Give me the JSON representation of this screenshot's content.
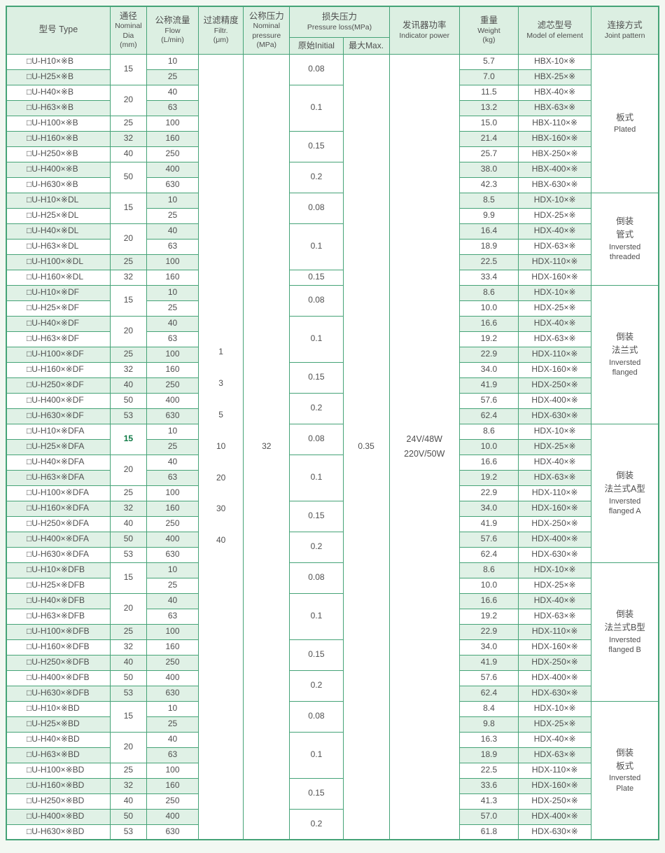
{
  "table": {
    "header": {
      "type_zh": "型号 Type",
      "dia_zh": "通径",
      "dia_en": "Nominal Dia",
      "dia_unit": "(mm)",
      "flow_zh": "公称流量",
      "flow_en": "Flow",
      "flow_unit": "(L/min)",
      "filtr_zh": "过滤精度",
      "filtr_en": "Filtr.",
      "filtr_unit": "(μm)",
      "pressure_zh": "公称压力",
      "pressure_en": "Nominal pressure",
      "pressure_unit": "(MPa)",
      "loss_zh": "损失压力",
      "loss_en": "Pressure loss(MPa)",
      "loss_initial": "原始Initial",
      "loss_max": "最大Max.",
      "power_zh": "发讯器功率",
      "power_en": "Indicator power",
      "weight_zh": "重量",
      "weight_en": "Weight",
      "weight_unit": "(kg)",
      "element_zh": "滤芯型号",
      "element_en": "Model of element",
      "joint_zh": "连接方式",
      "joint_en": "Joint pattern"
    },
    "shared": {
      "filtration_values": [
        "1",
        "3",
        "5",
        "10",
        "20",
        "30",
        "40"
      ],
      "nominal_pressure": "32",
      "loss_max_value": "0.35",
      "indicator_power": [
        "24V/48W",
        "220V/50W"
      ]
    },
    "groups": [
      {
        "joint_zh": [
          "板式"
        ],
        "joint_en": [
          "Plated"
        ],
        "dia_spans": [
          {
            "value": "15",
            "span": 2
          },
          {
            "value": "20",
            "span": 2
          },
          {
            "value": "25",
            "span": 1
          },
          {
            "value": "32",
            "span": 1
          },
          {
            "value": "40",
            "span": 1
          },
          {
            "value": "50",
            "span": 2
          }
        ],
        "loss_spans": [
          {
            "value": "0.08",
            "span": 2
          },
          {
            "value": "0.1",
            "span": 3
          },
          {
            "value": "0.15",
            "span": 2
          },
          {
            "value": "0.2",
            "span": 2
          }
        ],
        "rows": [
          {
            "type": "□U-H10×※B",
            "flow": "10",
            "weight": "5.7",
            "element": "HBX-10×※"
          },
          {
            "type": "□U-H25×※B",
            "flow": "25",
            "weight": "7.0",
            "element": "HBX-25×※"
          },
          {
            "type": "□U-H40×※B",
            "flow": "40",
            "weight": "11.5",
            "element": "HBX-40×※"
          },
          {
            "type": "□U-H63×※B",
            "flow": "63",
            "weight": "13.2",
            "element": "HBX-63×※"
          },
          {
            "type": "□U-H100×※B",
            "flow": "100",
            "weight": "15.0",
            "element": "HBX-110×※"
          },
          {
            "type": "□U-H160×※B",
            "flow": "160",
            "weight": "21.4",
            "element": "HBX-160×※"
          },
          {
            "type": "□U-H250×※B",
            "flow": "250",
            "weight": "25.7",
            "element": "HBX-250×※"
          },
          {
            "type": "□U-H400×※B",
            "flow": "400",
            "weight": "38.0",
            "element": "HBX-400×※"
          },
          {
            "type": "□U-H630×※B",
            "flow": "630",
            "weight": "42.3",
            "element": "HBX-630×※"
          }
        ]
      },
      {
        "joint_zh": [
          "倒装",
          "管式"
        ],
        "joint_en": [
          "Inversted",
          "threaded"
        ],
        "dia_spans": [
          {
            "value": "15",
            "span": 2
          },
          {
            "value": "20",
            "span": 2
          },
          {
            "value": "25",
            "span": 1
          },
          {
            "value": "32",
            "span": 1
          }
        ],
        "loss_spans": [
          {
            "value": "0.08",
            "span": 2
          },
          {
            "value": "0.1",
            "span": 3
          },
          {
            "value": "0.15",
            "span": 1
          }
        ],
        "rows": [
          {
            "type": "□U-H10×※DL",
            "flow": "10",
            "weight": "8.5",
            "element": "HDX-10×※"
          },
          {
            "type": "□U-H25×※DL",
            "flow": "25",
            "weight": "9.9",
            "element": "HDX-25×※"
          },
          {
            "type": "□U-H40×※DL",
            "flow": "40",
            "weight": "16.4",
            "element": "HDX-40×※"
          },
          {
            "type": "□U-H63×※DL",
            "flow": "63",
            "weight": "18.9",
            "element": "HDX-63×※"
          },
          {
            "type": "□U-H100×※DL",
            "flow": "100",
            "weight": "22.5",
            "element": "HDX-110×※"
          },
          {
            "type": "□U-H160×※DL",
            "flow": "160",
            "weight": "33.4",
            "element": "HDX-160×※"
          }
        ]
      },
      {
        "joint_zh": [
          "倒装",
          "法兰式"
        ],
        "joint_en": [
          "Inversted",
          "flanged"
        ],
        "dia_spans": [
          {
            "value": "15",
            "span": 2
          },
          {
            "value": "20",
            "span": 2
          },
          {
            "value": "25",
            "span": 1
          },
          {
            "value": "32",
            "span": 1
          },
          {
            "value": "40",
            "span": 1
          },
          {
            "value": "50",
            "span": 1
          },
          {
            "value": "53",
            "span": 1
          }
        ],
        "loss_spans": [
          {
            "value": "0.08",
            "span": 2
          },
          {
            "value": "0.1",
            "span": 3
          },
          {
            "value": "0.15",
            "span": 2
          },
          {
            "value": "0.2",
            "span": 2
          }
        ],
        "rows": [
          {
            "type": "□U-H10×※DF",
            "flow": "10",
            "weight": "8.6",
            "element": "HDX-10×※"
          },
          {
            "type": "□U-H25×※DF",
            "flow": "25",
            "weight": "10.0",
            "element": "HDX-25×※"
          },
          {
            "type": "□U-H40×※DF",
            "flow": "40",
            "weight": "16.6",
            "element": "HDX-40×※"
          },
          {
            "type": "□U-H63×※DF",
            "flow": "63",
            "weight": "19.2",
            "element": "HDX-63×※"
          },
          {
            "type": "□U-H100×※DF",
            "flow": "100",
            "weight": "22.9",
            "element": "HDX-110×※"
          },
          {
            "type": "□U-H160×※DF",
            "flow": "160",
            "weight": "34.0",
            "element": "HDX-160×※"
          },
          {
            "type": "□U-H250×※DF",
            "flow": "250",
            "weight": "41.9",
            "element": "HDX-250×※"
          },
          {
            "type": "□U-H400×※DF",
            "flow": "400",
            "weight": "57.6",
            "element": "HDX-400×※"
          },
          {
            "type": "□U-H630×※DF",
            "flow": "630",
            "weight": "62.4",
            "element": "HDX-630×※"
          }
        ]
      },
      {
        "joint_zh": [
          "倒装",
          "法兰式A型"
        ],
        "joint_en": [
          "Inversted",
          "flanged A"
        ],
        "dia_spans": [
          {
            "value": "15",
            "span": 2,
            "bold": true
          },
          {
            "value": "20",
            "span": 2
          },
          {
            "value": "25",
            "span": 1
          },
          {
            "value": "32",
            "span": 1
          },
          {
            "value": "40",
            "span": 1
          },
          {
            "value": "50",
            "span": 1
          },
          {
            "value": "53",
            "span": 1
          }
        ],
        "loss_spans": [
          {
            "value": "0.08",
            "span": 2
          },
          {
            "value": "0.1",
            "span": 3
          },
          {
            "value": "0.15",
            "span": 2
          },
          {
            "value": "0.2",
            "span": 2
          }
        ],
        "rows": [
          {
            "type": "□U-H10×※DFA",
            "flow": "10",
            "weight": "8.6",
            "element": "HDX-10×※"
          },
          {
            "type": "□U-H25×※DFA",
            "flow": "25",
            "weight": "10.0",
            "element": "HDX-25×※"
          },
          {
            "type": "□U-H40×※DFA",
            "flow": "40",
            "weight": "16.6",
            "element": "HDX-40×※"
          },
          {
            "type": "□U-H63×※DFA",
            "flow": "63",
            "weight": "19.2",
            "element": "HDX-63×※"
          },
          {
            "type": "□U-H100×※DFA",
            "flow": "100",
            "weight": "22.9",
            "element": "HDX-110×※"
          },
          {
            "type": "□U-H160×※DFA",
            "flow": "160",
            "weight": "34.0",
            "element": "HDX-160×※"
          },
          {
            "type": "□U-H250×※DFA",
            "flow": "250",
            "weight": "41.9",
            "element": "HDX-250×※"
          },
          {
            "type": "□U-H400×※DFA",
            "flow": "400",
            "weight": "57.6",
            "element": "HDX-400×※"
          },
          {
            "type": "□U-H630×※DFA",
            "flow": "630",
            "weight": "62.4",
            "element": "HDX-630×※"
          }
        ]
      },
      {
        "joint_zh": [
          "倒装",
          "法兰式B型"
        ],
        "joint_en": [
          "Inversted",
          "flanged B"
        ],
        "dia_spans": [
          {
            "value": "15",
            "span": 2
          },
          {
            "value": "20",
            "span": 2
          },
          {
            "value": "25",
            "span": 1
          },
          {
            "value": "32",
            "span": 1
          },
          {
            "value": "40",
            "span": 1
          },
          {
            "value": "50",
            "span": 1
          },
          {
            "value": "53",
            "span": 1
          }
        ],
        "loss_spans": [
          {
            "value": "0.08",
            "span": 2
          },
          {
            "value": "0.1",
            "span": 3
          },
          {
            "value": "0.15",
            "span": 2
          },
          {
            "value": "0.2",
            "span": 2
          }
        ],
        "rows": [
          {
            "type": "□U-H10×※DFB",
            "flow": "10",
            "weight": "8.6",
            "element": "HDX-10×※"
          },
          {
            "type": "□U-H25×※DFB",
            "flow": "25",
            "weight": "10.0",
            "element": "HDX-25×※"
          },
          {
            "type": "□U-H40×※DFB",
            "flow": "40",
            "weight": "16.6",
            "element": "HDX-40×※"
          },
          {
            "type": "□U-H63×※DFB",
            "flow": "63",
            "weight": "19.2",
            "element": "HDX-63×※"
          },
          {
            "type": "□U-H100×※DFB",
            "flow": "100",
            "weight": "22.9",
            "element": "HDX-110×※"
          },
          {
            "type": "□U-H160×※DFB",
            "flow": "160",
            "weight": "34.0",
            "element": "HDX-160×※"
          },
          {
            "type": "□U-H250×※DFB",
            "flow": "250",
            "weight": "41.9",
            "element": "HDX-250×※"
          },
          {
            "type": "□U-H400×※DFB",
            "flow": "400",
            "weight": "57.6",
            "element": "HDX-400×※"
          },
          {
            "type": "□U-H630×※DFB",
            "flow": "630",
            "weight": "62.4",
            "element": "HDX-630×※"
          }
        ]
      },
      {
        "joint_zh": [
          "倒装",
          "板式"
        ],
        "joint_en": [
          "Inversted",
          "Plate"
        ],
        "dia_spans": [
          {
            "value": "15",
            "span": 2
          },
          {
            "value": "20",
            "span": 2
          },
          {
            "value": "25",
            "span": 1
          },
          {
            "value": "32",
            "span": 1
          },
          {
            "value": "40",
            "span": 1
          },
          {
            "value": "50",
            "span": 1
          },
          {
            "value": "53",
            "span": 1
          }
        ],
        "loss_spans": [
          {
            "value": "0.08",
            "span": 2
          },
          {
            "value": "0.1",
            "span": 3
          },
          {
            "value": "0.15",
            "span": 2
          },
          {
            "value": "0.2",
            "span": 2
          }
        ],
        "rows": [
          {
            "type": "□U-H10×※BD",
            "flow": "10",
            "weight": "8.4",
            "element": "HDX-10×※"
          },
          {
            "type": "□U-H25×※BD",
            "flow": "25",
            "weight": "9.8",
            "element": "HDX-25×※"
          },
          {
            "type": "□U-H40×※BD",
            "flow": "40",
            "weight": "16.3",
            "element": "HDX-40×※"
          },
          {
            "type": "□U-H63×※BD",
            "flow": "63",
            "weight": "18.9",
            "element": "HDX-63×※"
          },
          {
            "type": "□U-H100×※BD",
            "flow": "100",
            "weight": "22.5",
            "element": "HDX-110×※"
          },
          {
            "type": "□U-H160×※BD",
            "flow": "160",
            "weight": "33.6",
            "element": "HDX-160×※"
          },
          {
            "type": "□U-H250×※BD",
            "flow": "250",
            "weight": "41.3",
            "element": "HDX-250×※"
          },
          {
            "type": "□U-H400×※BD",
            "flow": "400",
            "weight": "57.0",
            "element": "HDX-400×※"
          },
          {
            "type": "□U-H630×※BD",
            "flow": "630",
            "weight": "61.8",
            "element": "HDX-630×※"
          }
        ]
      }
    ]
  },
  "colors": {
    "border_green": "#45a377",
    "header_bg": "#dcefe2",
    "stripe_bg": "#e0f1e6",
    "highlight_green": "#0e7a45"
  }
}
